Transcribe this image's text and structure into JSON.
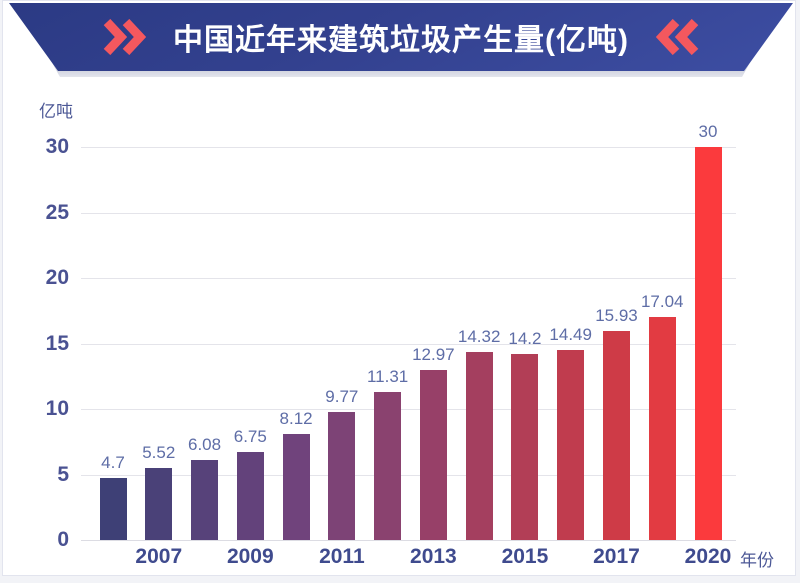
{
  "header": {
    "title": "中国近年来建筑垃圾产生量(亿吨)",
    "left_icon": "double-chevron-right",
    "right_icon": "double-chevron-left"
  },
  "chart_data": {
    "type": "bar",
    "title": "中国近年来建筑垃圾产生量(亿吨)",
    "ylabel": "亿吨",
    "xlabel": "年份",
    "ylim": [
      0,
      30
    ],
    "yticks": [
      0,
      5,
      10,
      15,
      20,
      25,
      30
    ],
    "grid": true,
    "legend": "none",
    "categories": [
      "",
      "2007",
      "",
      "2009",
      "",
      "2011",
      "",
      "2013",
      "",
      "2015",
      "",
      "2017",
      "",
      "2020"
    ],
    "values": [
      4.7,
      5.52,
      6.08,
      6.75,
      8.12,
      9.77,
      11.31,
      12.97,
      14.32,
      14.2,
      14.49,
      15.93,
      17.04,
      30
    ],
    "value_labels": [
      "4.7",
      "5.52",
      "6.08",
      "6.75",
      "8.12",
      "9.77",
      "11.31",
      "12.97",
      "14.32",
      "14.2",
      "14.49",
      "15.93",
      "17.04",
      "30"
    ],
    "bar_colors": [
      "#3e4076",
      "#4a4178",
      "#57427a",
      "#63427b",
      "#70437c",
      "#7d4376",
      "#8a426f",
      "#974068",
      "#a43f5f",
      "#b23e56",
      "#c03c4e",
      "#ce3b47",
      "#e23b42",
      "#fb3a3d"
    ]
  },
  "palette": {
    "banner_gradient_top": "#2b3a84",
    "banner_gradient_bottom": "#3d4ea3",
    "chevron": "#f4585e",
    "title_text": "#ffffff",
    "ytick_text": "#4a5292",
    "year_text": "#3f4b8e",
    "value_text": "#5e6da6",
    "unit_text": "#4c5896",
    "gridline": "#e4e4ea",
    "page_background": "#f2f3f7",
    "card_background": "#ffffff"
  }
}
